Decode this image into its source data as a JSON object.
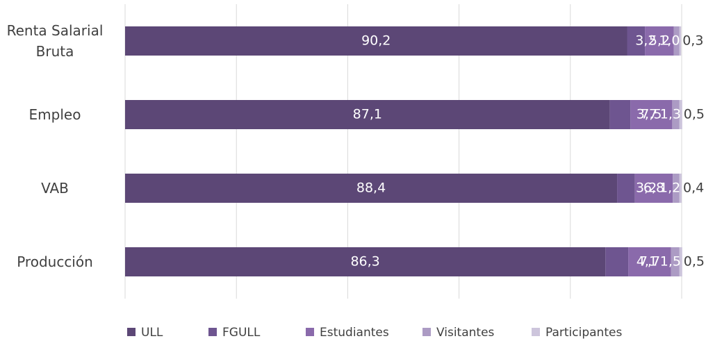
{
  "chart_data": {
    "type": "stacked-barh",
    "categories": [
      "Renta Salarial Bruta",
      "Empleo",
      "VAB",
      "Producción"
    ],
    "series": [
      {
        "name": "ULL",
        "color": "#5c4776",
        "values": [
          90.2,
          87.1,
          88.4,
          86.3
        ],
        "value_labels": [
          "90,2",
          "87,1",
          "88,4",
          "86,3"
        ]
      },
      {
        "name": "FGULL",
        "color": "#6e5590",
        "values": [
          3.2,
          3.7,
          3.2,
          4.1
        ],
        "value_labels": [
          "3,2",
          "3,7",
          "3,2",
          "4,1"
        ]
      },
      {
        "name": "Estudiantes",
        "color": "#8a6aab",
        "values": [
          5.2,
          7.5,
          6.8,
          7.7
        ],
        "value_labels": [
          "5,2",
          "7,5",
          "6,8",
          "7,7"
        ]
      },
      {
        "name": "Visitantes",
        "color": "#ac9bc4",
        "values": [
          1.0,
          1.3,
          1.2,
          1.5
        ],
        "value_labels": [
          "1,0",
          "1,3",
          "1,2",
          "1,5"
        ]
      },
      {
        "name": "Participantes",
        "color": "#cdc5dc",
        "values": [
          0.3,
          0.5,
          0.4,
          0.5
        ],
        "value_labels": [
          "0,3",
          "0,5",
          "0,4",
          "0,5"
        ]
      }
    ],
    "xlim": [
      0,
      100
    ],
    "xticks": [
      0,
      20,
      40,
      60,
      80,
      100
    ],
    "xtick_labels": false,
    "grid": true,
    "legend": "bottom"
  }
}
